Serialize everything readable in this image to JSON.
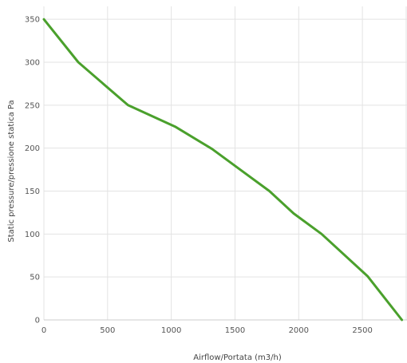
{
  "chart_data": {
    "type": "line",
    "title": "",
    "xlabel": "Airflow/Portata (m3/h)",
    "ylabel": "Static pressure/pressione statica Pa",
    "xlim": [
      0,
      2850
    ],
    "ylim": [
      0,
      365
    ],
    "x_ticks": [
      0,
      500,
      1000,
      1500,
      2000,
      2500
    ],
    "y_ticks": [
      0,
      50,
      100,
      150,
      200,
      250,
      300,
      350
    ],
    "grid": true,
    "legend": "none",
    "series": [
      {
        "color": "#4aa02c",
        "x": [
          0,
          270,
          660,
          1030,
          1320,
          1540,
          1770,
          1960,
          2180,
          2540,
          2810
        ],
        "y": [
          350,
          300,
          250,
          225,
          199,
          175,
          150,
          124,
          100,
          51,
          0
        ]
      }
    ]
  }
}
